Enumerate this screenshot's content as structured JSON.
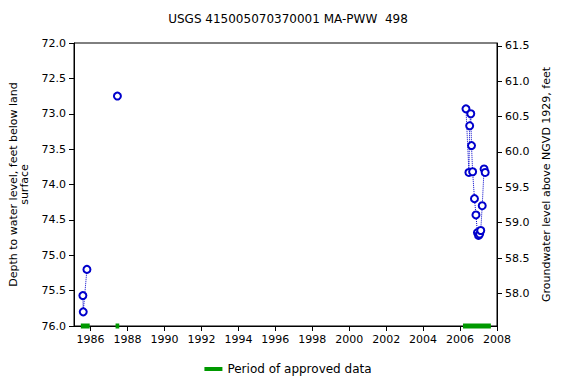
{
  "chart_data": {
    "type": "line",
    "title": "USGS 415005070370001 MA-PWW  498",
    "y_label": "Depth to water level, feet below land\nsurface",
    "y2_label": "Groundwater level above NGVD 1929, feet",
    "xlim": [
      1985.1,
      2008
    ],
    "xticks": [
      1986,
      1988,
      1990,
      1992,
      1994,
      1996,
      1998,
      2000,
      2002,
      2004,
      2006,
      2008
    ],
    "ylim": [
      72,
      76
    ],
    "yticks": [
      {
        "value": 72,
        "label": "72.0"
      },
      72.5,
      {
        "value": 73,
        "label": "73.0"
      },
      73.5,
      {
        "value": 74,
        "label": "74.0"
      },
      74.5,
      {
        "value": 75,
        "label": "75.0"
      },
      75.5,
      {
        "value": 76,
        "label": "76.0"
      }
    ],
    "y2lim": [
      57.54,
      61.54
    ],
    "y2ticks": [
      {
        "value": 58,
        "label": "58.0"
      },
      58.5,
      {
        "value": 59,
        "label": "59.0"
      },
      59.5,
      {
        "value": 60,
        "label": "60.0"
      },
      60.5,
      {
        "value": 61,
        "label": "61.0"
      },
      61.5
    ],
    "grid": false,
    "legend": "bottom",
    "series": [
      {
        "color": "#0000cc",
        "marker": "open circle",
        "line_style": "dotted",
        "x": [
          1985.58,
          1985.6,
          1985.8
        ],
        "values": [
          75.57,
          75.8,
          75.2
        ]
      },
      {
        "color": "#0000cc",
        "marker": "open circle",
        "line_style": "dotted",
        "x": [
          1987.45
        ],
        "values": [
          72.75
        ]
      },
      {
        "color": "#0000cc",
        "marker": "open circle",
        "line_style": "dotted",
        "x": [
          2006.32,
          2006.48,
          2006.52,
          2006.58,
          2006.62,
          2006.68,
          2006.78,
          2006.86,
          2006.94,
          2007.0,
          2007.06,
          2007.12,
          2007.2,
          2007.3,
          2007.36
        ],
        "values": [
          72.93,
          73.83,
          73.17,
          73.0,
          73.45,
          73.82,
          74.2,
          74.43,
          74.68,
          74.72,
          74.7,
          74.65,
          74.3,
          73.78,
          73.83
        ]
      }
    ],
    "approved_periods": {
      "name": "Period of approved data",
      "color": "#009900",
      "ranges": [
        [
          1985.47,
          1985.95
        ],
        [
          1987.35,
          1987.55
        ],
        [
          2006.16,
          2007.67
        ]
      ]
    }
  }
}
